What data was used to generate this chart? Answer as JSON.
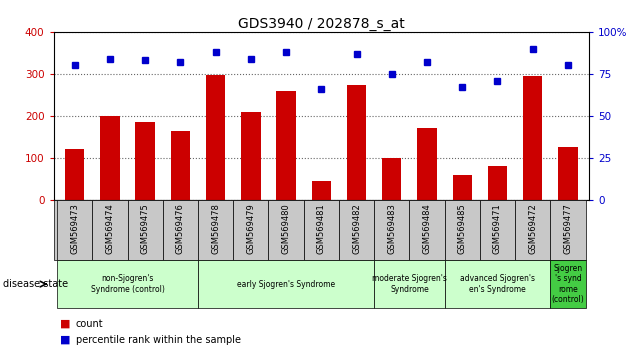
{
  "title": "GDS3940 / 202878_s_at",
  "samples": [
    "GSM569473",
    "GSM569474",
    "GSM569475",
    "GSM569476",
    "GSM569478",
    "GSM569479",
    "GSM569480",
    "GSM569481",
    "GSM569482",
    "GSM569483",
    "GSM569484",
    "GSM569485",
    "GSM569471",
    "GSM569472",
    "GSM569477"
  ],
  "counts": [
    122,
    200,
    185,
    163,
    298,
    210,
    260,
    45,
    273,
    100,
    172,
    60,
    80,
    295,
    127
  ],
  "percentiles": [
    80,
    84,
    83,
    82,
    88,
    84,
    88,
    66,
    87,
    75,
    82,
    67,
    71,
    90,
    80
  ],
  "bar_color": "#cc0000",
  "dot_color": "#0000cc",
  "ylim_left": [
    0,
    400
  ],
  "ylim_right": [
    0,
    100
  ],
  "yticks_left": [
    0,
    100,
    200,
    300,
    400
  ],
  "yticks_right": [
    0,
    25,
    50,
    75,
    100
  ],
  "right_tick_top_label": "100%",
  "group_defs": [
    {
      "label": "non-Sjogren's\nSyndrome (control)",
      "start": 0,
      "end": 3,
      "color": "#ccffcc"
    },
    {
      "label": "early Sjogren's Syndrome",
      "start": 4,
      "end": 8,
      "color": "#ccffcc"
    },
    {
      "label": "moderate Sjogren's\nSyndrome",
      "start": 9,
      "end": 10,
      "color": "#ccffcc"
    },
    {
      "label": "advanced Sjogren's\nen's Syndrome",
      "start": 11,
      "end": 13,
      "color": "#ccffcc"
    },
    {
      "label": "Sjogren\n's synd\nrome\n(control)",
      "start": 14,
      "end": 14,
      "color": "#44cc44"
    }
  ],
  "tick_label_color": "#cc0000",
  "right_tick_color": "#0000cc",
  "legend_count_color": "#cc0000",
  "legend_pct_color": "#0000cc",
  "gray_bg": "#c8c8c8",
  "grid_color": "#666666"
}
